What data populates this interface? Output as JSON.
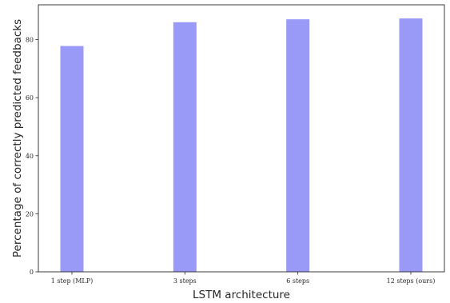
{
  "chart_data": {
    "type": "bar",
    "title": "",
    "xlabel": "LSTM architecture",
    "ylabel": "Percentage of correctly predicted feedbacks",
    "categories": [
      "1 step (MLP)",
      "3 steps",
      "6 steps",
      "12 steps (ours)"
    ],
    "values": [
      77.8,
      86.0,
      87.0,
      87.3
    ],
    "ylim": [
      0,
      92
    ],
    "yticks": [
      0,
      20,
      40,
      60,
      80
    ],
    "grid": false,
    "legend": "none",
    "bar_color": "#9999f7"
  }
}
